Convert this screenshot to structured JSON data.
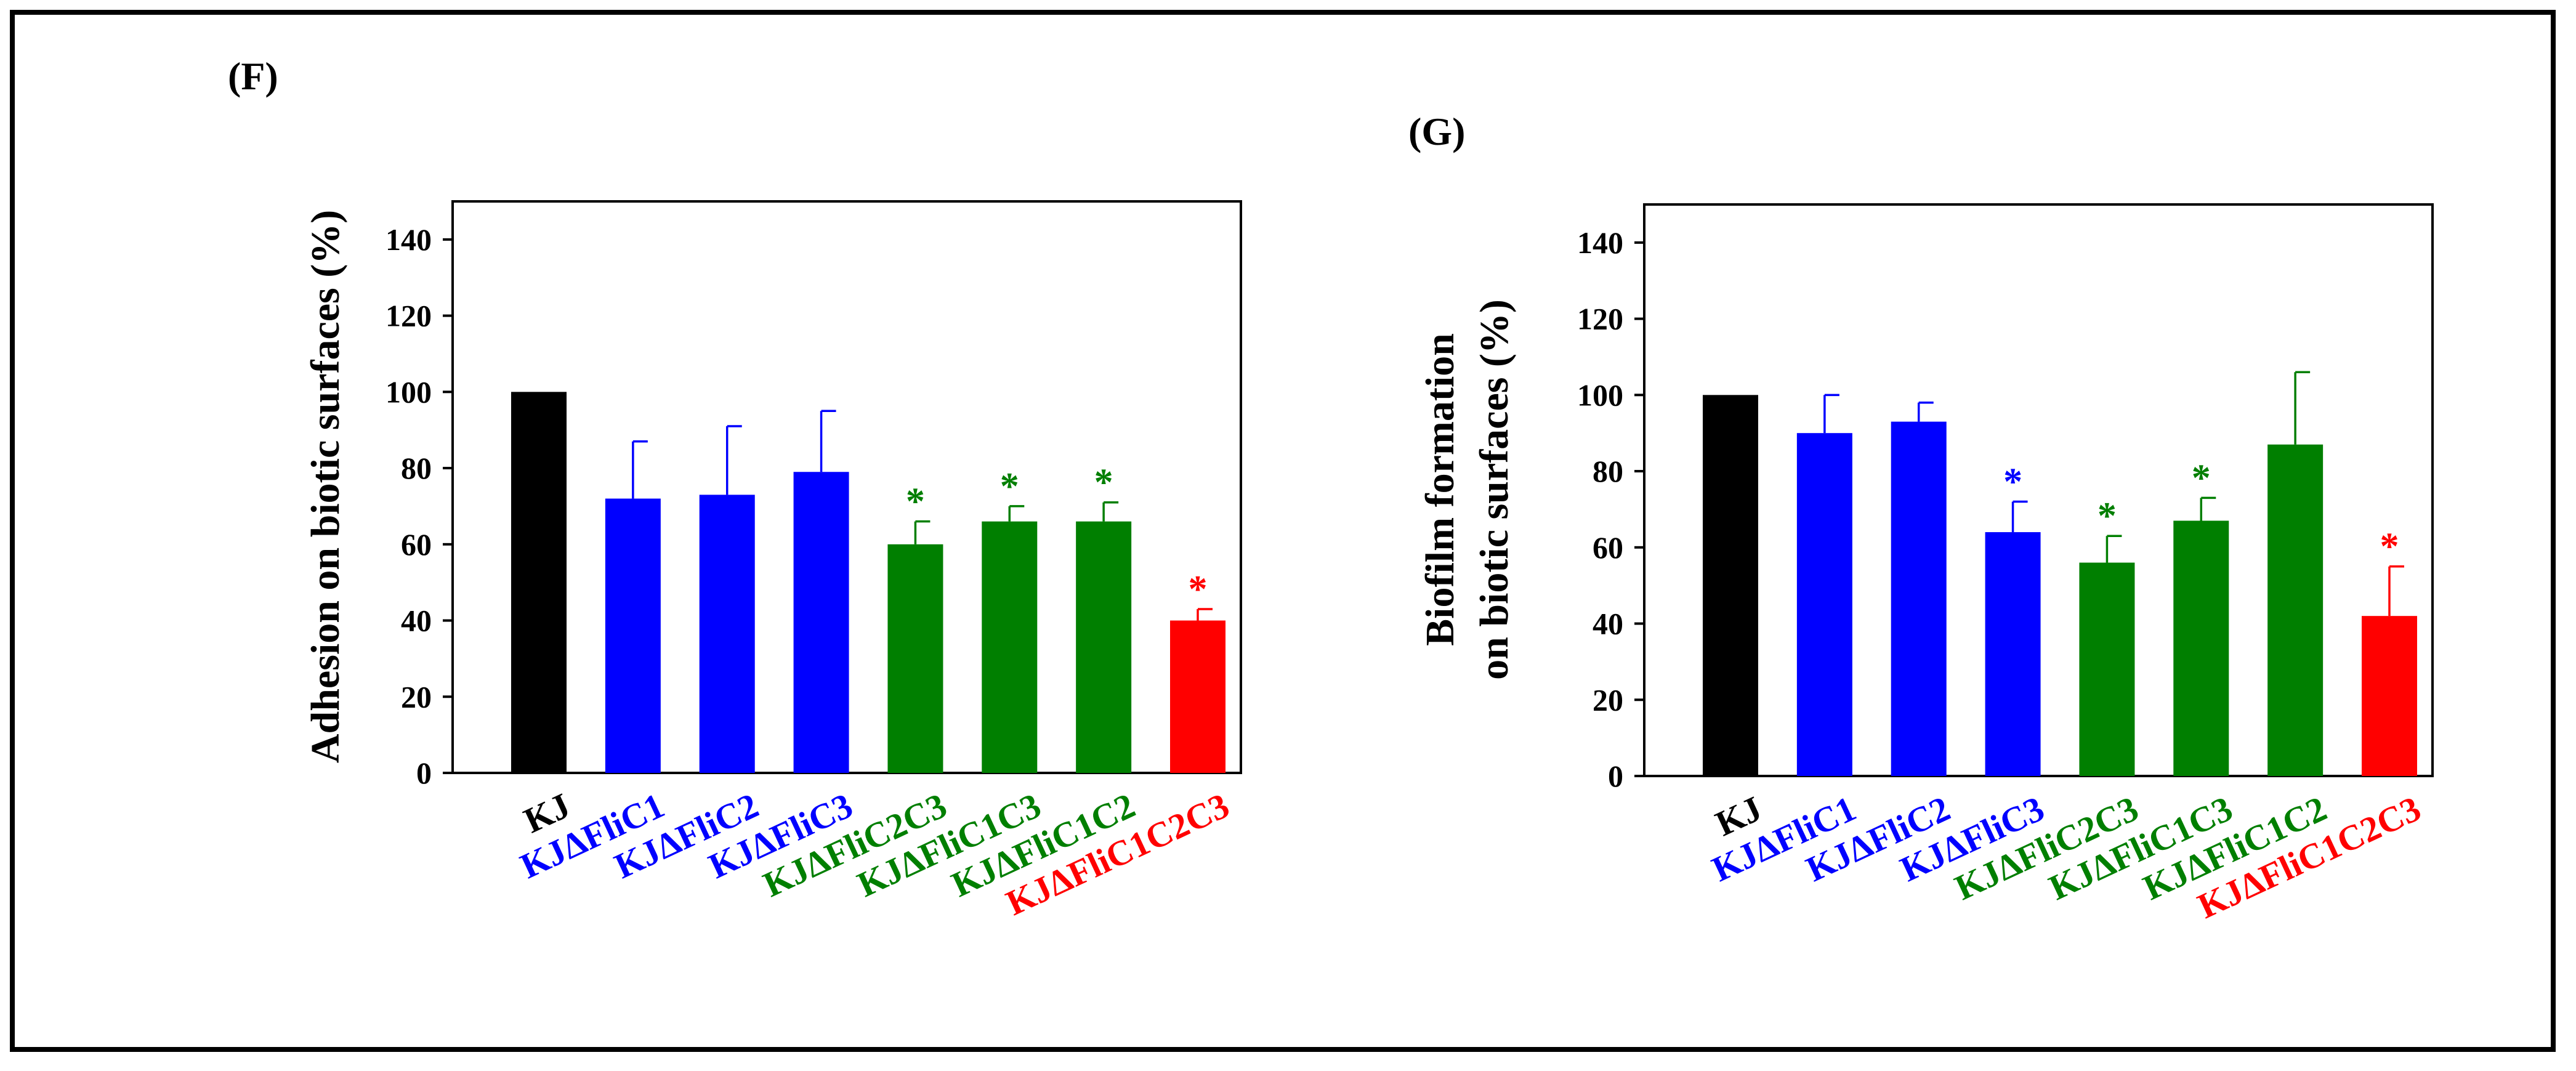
{
  "chart_data": [
    {
      "type": "bar",
      "panel_label": "(F)",
      "title": "",
      "xlabel": "",
      "ylabel": "Adhesion on biotic surfaces (%)",
      "ylim": [
        0,
        150
      ],
      "yticks": [
        0,
        20,
        40,
        60,
        80,
        100,
        120,
        140
      ],
      "grid": false,
      "categories": [
        "KJ",
        "KJΔFliC1",
        "KJΔFliC2",
        "KJΔFliC3",
        "KJΔFliC2C3",
        "KJΔFliC1C3",
        "KJΔFliC1C2",
        "KJΔFliC1C2C3"
      ],
      "values": [
        100,
        72,
        73,
        79,
        60,
        66,
        66,
        40
      ],
      "errors": [
        0,
        15,
        18,
        16,
        6,
        4,
        5,
        3
      ],
      "significance": [
        "",
        "",
        "",
        "",
        "*",
        "*",
        "*",
        "*"
      ],
      "bar_colors": [
        "#000000",
        "#0000ff",
        "#0000ff",
        "#0000ff",
        "#007f00",
        "#007f00",
        "#007f00",
        "#ff0000"
      ]
    },
    {
      "type": "bar",
      "panel_label": "(G)",
      "title": "",
      "xlabel": "",
      "ylabel": [
        "Biofilm formation",
        "on biotic surfaces (%)"
      ],
      "ylim": [
        0,
        150
      ],
      "yticks": [
        0,
        20,
        40,
        60,
        80,
        100,
        120,
        140
      ],
      "grid": false,
      "categories": [
        "KJ",
        "KJΔFliC1",
        "KJΔFliC2",
        "KJΔFliC3",
        "KJΔFliC2C3",
        "KJΔFliC1C3",
        "KJΔFliC1C2",
        "KJΔFliC1C2C3"
      ],
      "values": [
        100,
        90,
        93,
        64,
        56,
        67,
        87,
        42
      ],
      "errors": [
        0,
        10,
        5,
        8,
        7,
        6,
        19,
        13
      ],
      "significance": [
        "",
        "",
        "",
        "*",
        "*",
        "*",
        "",
        "*"
      ],
      "bar_colors": [
        "#000000",
        "#0000ff",
        "#0000ff",
        "#0000ff",
        "#007f00",
        "#007f00",
        "#007f00",
        "#ff0000"
      ]
    }
  ]
}
